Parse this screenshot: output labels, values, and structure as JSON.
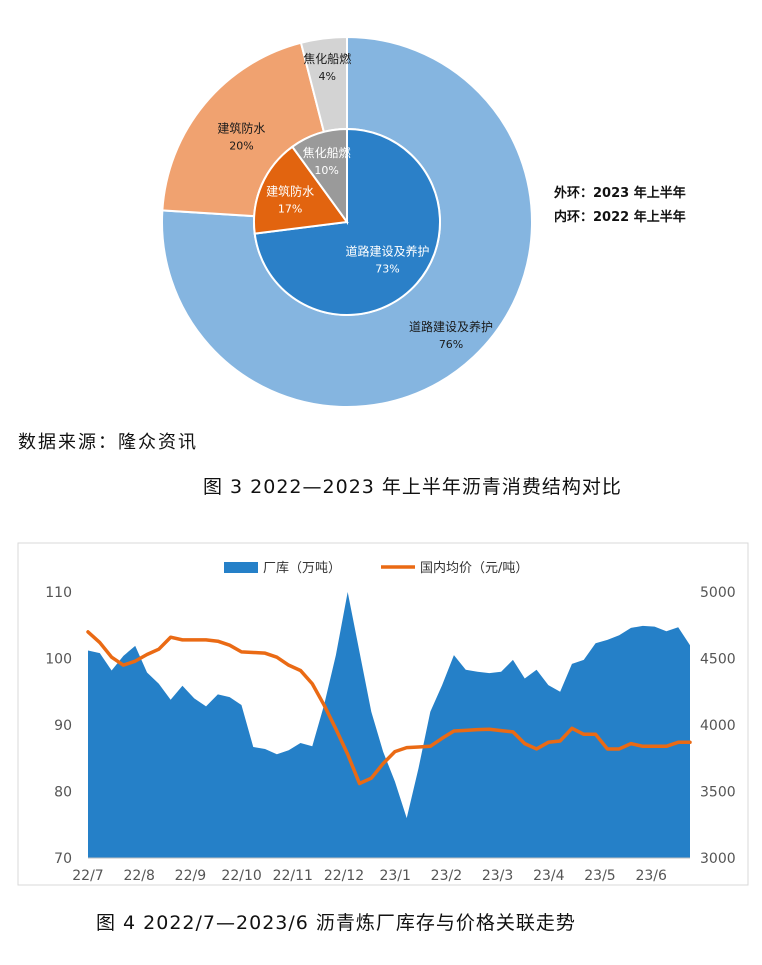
{
  "source_text": "数据来源：隆众资讯",
  "figure3_caption": "图 3  2022—2023 年上半年沥青消费结构对比",
  "figure4_caption": "图 4  2022/7—2023/6 沥青炼厂库存与价格关联走势",
  "chart_data": [
    {
      "type": "pie",
      "subtype": "double-donut",
      "legend_text": [
        "外环：2023 年上半年",
        "内环：2022 年上半年"
      ],
      "outer_ring": {
        "name": "2023 年上半年",
        "labels": [
          "道路建设及养护",
          "建筑防水",
          "焦化船燃"
        ],
        "values": [
          76,
          20,
          4
        ],
        "value_labels": [
          "76%",
          "20%",
          "4%"
        ],
        "colors": [
          "#85b5e0",
          "#f0a270",
          "#d3d3d3"
        ]
      },
      "inner_ring": {
        "name": "2022 年上半年",
        "labels": [
          "道路建设及养护",
          "建筑防水",
          "焦化船燃"
        ],
        "values": [
          73,
          17,
          10
        ],
        "value_labels": [
          "73%",
          "17%",
          "10%"
        ],
        "colors": [
          "#2b80c8",
          "#e2640f",
          "#9a9a9a"
        ]
      }
    },
    {
      "type": "area",
      "legend_position": "top",
      "series": [
        {
          "name": "厂库（万吨）",
          "type": "area",
          "axis": "left",
          "color": "#2580c8",
          "values": [
            101.2,
            100.8,
            98.2,
            100.4,
            101.9,
            97.9,
            96.2,
            93.8,
            95.9,
            94.0,
            92.8,
            94.6,
            94.2,
            93.0,
            86.7,
            86.4,
            85.6,
            86.2,
            87.3,
            86.8,
            93.0,
            100.5,
            110.0,
            101.0,
            92.0,
            86.0,
            81.5,
            76.0,
            83.5,
            92.0,
            96.0,
            100.5,
            98.3,
            98.0,
            97.8,
            98.0,
            99.8,
            97.0,
            98.3,
            96.0,
            95.0,
            99.2,
            99.8,
            102.3,
            102.8,
            103.5,
            104.6,
            104.9,
            104.8,
            104.1,
            104.7,
            102.0
          ]
        },
        {
          "name": "国内均价（元/吨）",
          "type": "line",
          "axis": "right",
          "color": "#ea6a14",
          "values": [
            4700,
            4620,
            4510,
            4450,
            4480,
            4530,
            4570,
            4660,
            4640,
            4640,
            4640,
            4630,
            4600,
            4550,
            4545,
            4540,
            4510,
            4450,
            4410,
            4310,
            4150,
            3970,
            3780,
            3560,
            3600,
            3710,
            3800,
            3830,
            3835,
            3840,
            3900,
            3955,
            3960,
            3965,
            3968,
            3958,
            3948,
            3860,
            3820,
            3870,
            3880,
            3975,
            3930,
            3930,
            3820,
            3820,
            3860,
            3840,
            3840,
            3840,
            3870,
            3870
          ]
        }
      ],
      "x_tick_labels": [
        "22/7",
        "22/8",
        "22/9",
        "22/10",
        "22/11",
        "22/12",
        "23/1",
        "23/2",
        "23/3",
        "23/4",
        "23/5",
        "23/6"
      ],
      "y_left": {
        "min": 70,
        "max": 110,
        "ticks": [
          "70",
          "80",
          "90",
          "100",
          "110"
        ]
      },
      "y_right": {
        "min": 3000,
        "max": 5000,
        "ticks": [
          "3000",
          "3500",
          "4000",
          "4500",
          "5000"
        ]
      },
      "grid": false
    }
  ]
}
